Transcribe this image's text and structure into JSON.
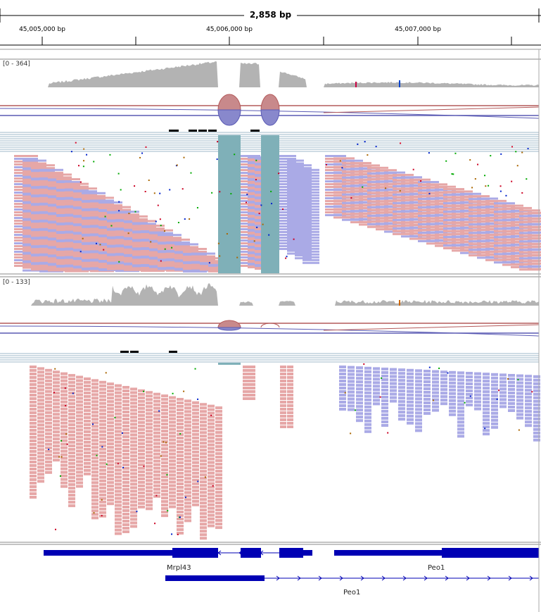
{
  "ruler": {
    "span_label": "2,858 bp",
    "ticks": [
      "45,005,000 bp",
      "45,006,000 bp",
      "45,007,000 bp"
    ]
  },
  "tracks": [
    {
      "range_label": "[0 - 364]",
      "coverage_color": "#b3b3b3",
      "has_mismatch_bars": true
    },
    {
      "range_label": "[0 - 133]",
      "coverage_color": "#b3b3b3",
      "has_mismatch_bars": true
    }
  ],
  "genes": [
    {
      "name": "Mrpl43",
      "strand": "-"
    },
    {
      "name": "Peo1",
      "strand": "+"
    },
    {
      "name": "Peo1",
      "strand": "+"
    }
  ],
  "colors": {
    "read_forward": "#e6a7a7",
    "read_reverse": "#aaaae6",
    "split_gap": "#7fb0b8",
    "junction_forward": "#b45a5a",
    "junction_reverse": "#5a5ab4",
    "gene": "#0000b4",
    "border": "#888888"
  }
}
